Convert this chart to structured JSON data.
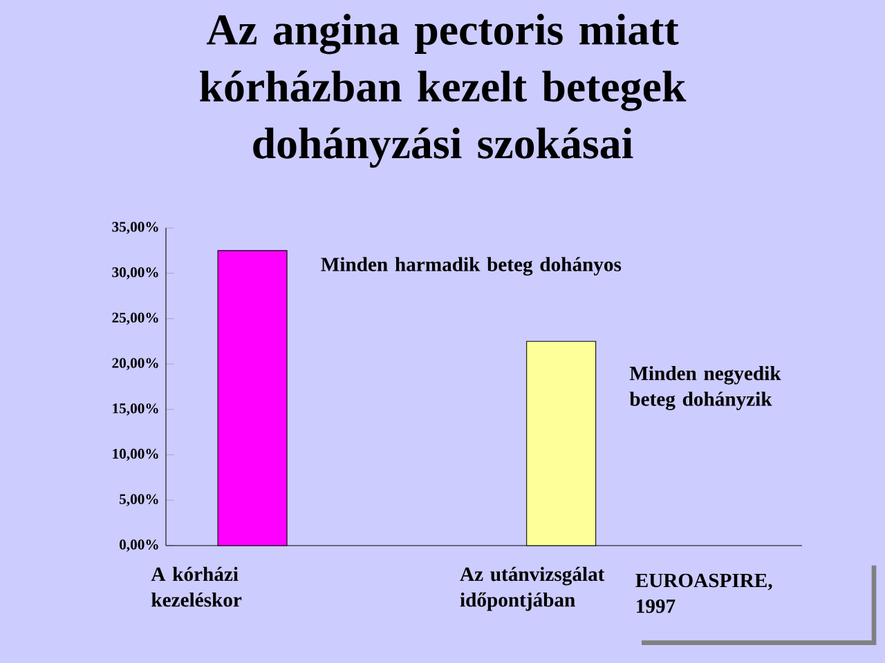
{
  "chart_data": {
    "type": "bar",
    "title": "Az angina pectoris miatt kórházban kezelt betegek dohányzási szokásai",
    "categories": [
      "A kórházi kezeléskor",
      "Az utánvizsgálat időpontjában"
    ],
    "values": [
      32.5,
      22.5
    ],
    "colors": [
      "#ff00ff",
      "#ffff99"
    ],
    "ylim": [
      0,
      35
    ],
    "yticks": [
      {
        "value": 0,
        "label": "0,00%"
      },
      {
        "value": 5,
        "label": "5,00%"
      },
      {
        "value": 10,
        "label": "10,00%"
      },
      {
        "value": 15,
        "label": "15,00%"
      },
      {
        "value": 20,
        "label": "20,00%"
      },
      {
        "value": 25,
        "label": "25,00%"
      },
      {
        "value": 30,
        "label": "30,00%"
      },
      {
        "value": 35,
        "label": "35,00%"
      }
    ],
    "annotations": [
      "Minden harmadik beteg dohányos",
      "Minden negyedik beteg dohányzik",
      "EUROASPIRE, 1997"
    ],
    "grid": false
  }
}
